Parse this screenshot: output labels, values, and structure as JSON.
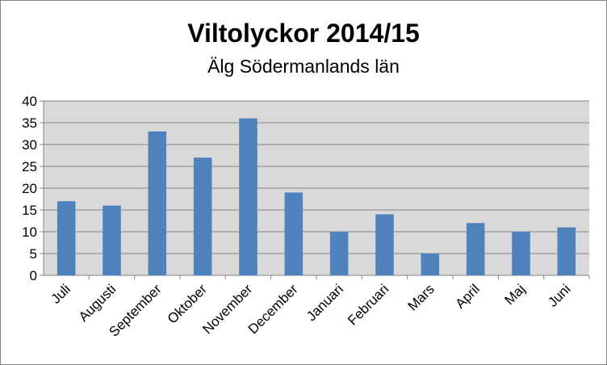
{
  "chart_data": {
    "type": "bar",
    "title": "Viltolyckor 2014/15",
    "subtitle": "Älg Södermanlands  län",
    "xlabel": "",
    "ylabel": "",
    "categories": [
      "Juli",
      "Augusti",
      "September",
      "Oktober",
      "November",
      "December",
      "Januari",
      "Februari",
      "Mars",
      "April",
      "Maj",
      "Juni"
    ],
    "values": [
      17,
      16,
      33,
      27,
      36,
      19,
      10,
      14,
      5,
      12,
      10,
      11
    ],
    "ylim": [
      0,
      40
    ],
    "yticks": [
      0,
      5,
      10,
      15,
      20,
      25,
      30,
      35,
      40
    ],
    "grid": true,
    "legend": "none",
    "colors": {
      "bar": "#4F81BD",
      "plot_background": "#D9D9D9",
      "gridline": "#868686",
      "frame": "#868686"
    }
  }
}
